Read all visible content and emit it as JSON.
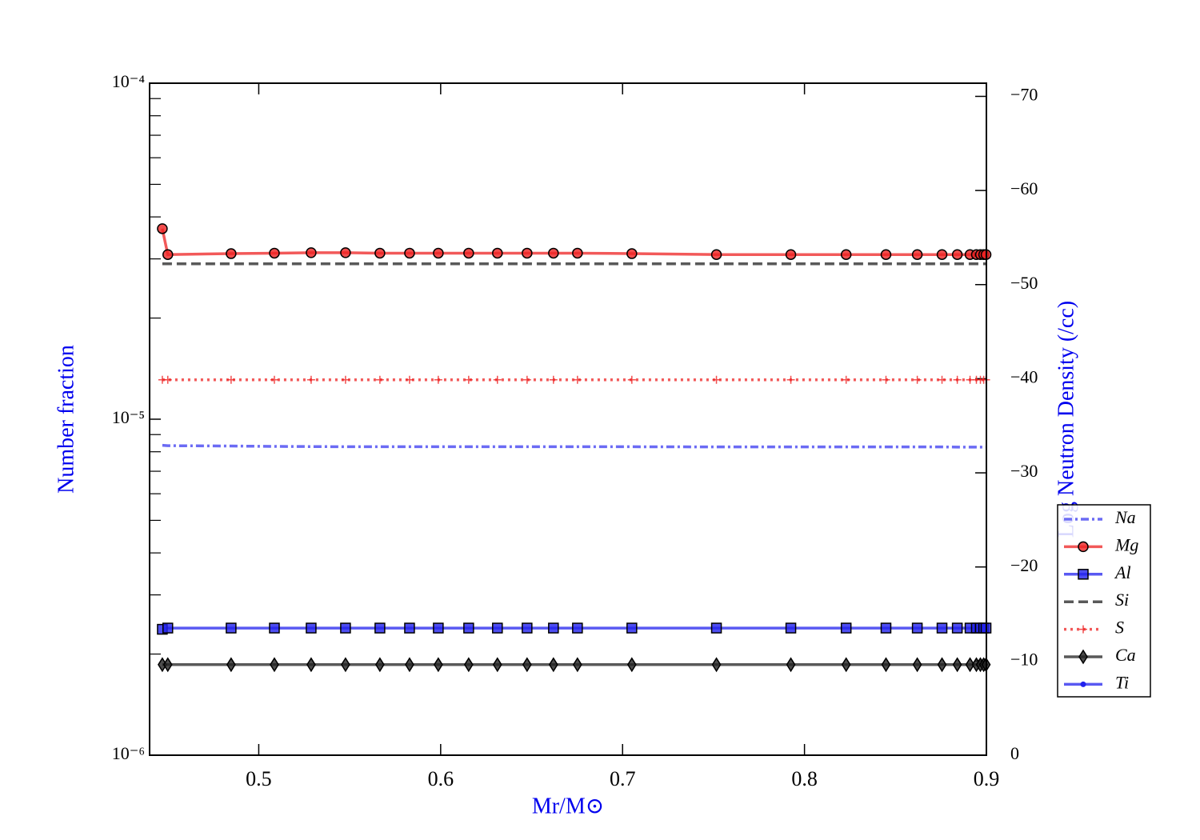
{
  "chart_data": {
    "type": "line",
    "xlabel": "Mr/M⊙",
    "ylabel": "Number fraction",
    "y2label": "Log Neutron Density (/cc)",
    "x": [
      0.447,
      0.45,
      0.4848,
      0.5086,
      0.5288,
      0.5477,
      0.5666,
      0.5829,
      0.5987,
      0.6154,
      0.6312,
      0.6475,
      0.662,
      0.6752,
      0.7051,
      0.7516,
      0.7925,
      0.8229,
      0.8448,
      0.862,
      0.8756,
      0.884,
      0.891,
      0.8945,
      0.8967,
      0.8985,
      0.8998
    ],
    "series": [
      {
        "name": "Na",
        "color": "#3a3af0",
        "dash": "dashdot",
        "marker": "none",
        "values": [
          8.36e-06,
          8.34e-06,
          8.32e-06,
          8.3e-06,
          8.29e-06,
          8.28e-06,
          8.28e-06,
          8.28e-06,
          8.28e-06,
          8.28e-06,
          8.28e-06,
          8.28e-06,
          8.28e-06,
          8.28e-06,
          8.28e-06,
          8.27e-06,
          8.27e-06,
          8.27e-06,
          8.27e-06,
          8.27e-06,
          8.27e-06,
          8.26e-06,
          8.26e-06,
          8.26e-06,
          8.26e-06,
          8.26e-06,
          8.26e-06
        ]
      },
      {
        "name": "Mg",
        "color": "#ee2222",
        "dash": "solid",
        "marker": "circle",
        "values": [
          3.69e-05,
          3.09e-05,
          3.11e-05,
          3.12e-05,
          3.13e-05,
          3.13e-05,
          3.12e-05,
          3.12e-05,
          3.12e-05,
          3.12e-05,
          3.12e-05,
          3.12e-05,
          3.12e-05,
          3.12e-05,
          3.11e-05,
          3.09e-05,
          3.09e-05,
          3.09e-05,
          3.09e-05,
          3.09e-05,
          3.09e-05,
          3.09e-05,
          3.09e-05,
          3.09e-05,
          3.09e-05,
          3.09e-05,
          3.09e-05
        ]
      },
      {
        "name": "Al",
        "color": "#2222ee",
        "dash": "solid",
        "marker": "square",
        "values": [
          2.37e-06,
          2.39e-06,
          2.39e-06,
          2.39e-06,
          2.39e-06,
          2.39e-06,
          2.39e-06,
          2.39e-06,
          2.39e-06,
          2.39e-06,
          2.39e-06,
          2.39e-06,
          2.39e-06,
          2.39e-06,
          2.39e-06,
          2.39e-06,
          2.39e-06,
          2.39e-06,
          2.39e-06,
          2.39e-06,
          2.39e-06,
          2.39e-06,
          2.39e-06,
          2.39e-06,
          2.39e-06,
          2.39e-06,
          2.39e-06
        ]
      },
      {
        "name": "Si",
        "color": "#222222",
        "dash": "dashed",
        "marker": "none",
        "values": [
          2.9e-05,
          2.9e-05,
          2.9e-05,
          2.9e-05,
          2.9e-05,
          2.9e-05,
          2.9e-05,
          2.9e-05,
          2.9e-05,
          2.9e-05,
          2.9e-05,
          2.9e-05,
          2.9e-05,
          2.9e-05,
          2.9e-05,
          2.9e-05,
          2.9e-05,
          2.9e-05,
          2.9e-05,
          2.9e-05,
          2.9e-05,
          2.9e-05,
          2.9e-05,
          2.9e-05,
          2.9e-05,
          2.9e-05,
          2.9e-05
        ]
      },
      {
        "name": "S",
        "color": "#ee2222",
        "dash": "dotted",
        "marker": "plus",
        "values": [
          1.31e-05,
          1.31e-05,
          1.31e-05,
          1.31e-05,
          1.31e-05,
          1.31e-05,
          1.31e-05,
          1.31e-05,
          1.31e-05,
          1.31e-05,
          1.31e-05,
          1.31e-05,
          1.31e-05,
          1.31e-05,
          1.31e-05,
          1.31e-05,
          1.31e-05,
          1.31e-05,
          1.31e-05,
          1.31e-05,
          1.31e-05,
          1.31e-05,
          1.31e-05,
          1.31e-05,
          1.31e-05,
          1.31e-05,
          1.31e-05
        ]
      },
      {
        "name": "Ca",
        "color": "#222222",
        "dash": "solid",
        "marker": "diamond",
        "values": [
          1.86e-06,
          1.86e-06,
          1.86e-06,
          1.86e-06,
          1.86e-06,
          1.86e-06,
          1.86e-06,
          1.86e-06,
          1.86e-06,
          1.86e-06,
          1.86e-06,
          1.86e-06,
          1.86e-06,
          1.86e-06,
          1.86e-06,
          1.86e-06,
          1.86e-06,
          1.86e-06,
          1.86e-06,
          1.86e-06,
          1.86e-06,
          1.86e-06,
          1.86e-06,
          1.86e-06,
          1.86e-06,
          1.86e-06,
          1.86e-06
        ]
      },
      {
        "name": "Ti",
        "color": "#2222ee",
        "dash": "solid",
        "marker": "dot",
        "values": [
          null,
          null,
          null,
          null,
          null,
          null,
          null,
          null,
          null,
          null,
          null,
          null,
          null,
          null,
          null,
          null,
          null,
          null,
          null,
          null,
          null,
          null,
          null,
          null,
          null,
          null,
          null
        ]
      }
    ],
    "xlim": [
      0.44,
      0.9
    ],
    "xticks": [
      0.5,
      0.6,
      0.7,
      0.8,
      0.9
    ],
    "ylim": [
      1e-06,
      0.0001
    ],
    "ylog": true,
    "yticks": [
      {
        "value": 1e-06,
        "label": "10⁻⁶"
      },
      {
        "value": 1e-05,
        "label": "10⁻⁵"
      },
      {
        "value": 0.0001,
        "label": "10⁻⁴"
      }
    ],
    "yminorticks": [
      2e-06,
      3e-06,
      4e-06,
      5e-06,
      6e-06,
      7e-06,
      8e-06,
      9e-06,
      2e-05,
      3e-05,
      4e-05,
      5e-05,
      6e-05,
      7e-05,
      8e-05,
      9e-05
    ],
    "y2lim": [
      0,
      -71.4
    ],
    "y2ticks": [
      0,
      {
        "value": -10,
        "label": "−10"
      },
      {
        "value": -20,
        "label": "−20"
      },
      {
        "value": -30,
        "label": "−30"
      },
      {
        "value": -40,
        "label": "−40"
      },
      {
        "value": -50,
        "label": "−50"
      },
      {
        "value": -60,
        "label": "−60"
      },
      {
        "value": -70,
        "label": "−70"
      }
    ],
    "grid": false,
    "legend": "lower right"
  }
}
